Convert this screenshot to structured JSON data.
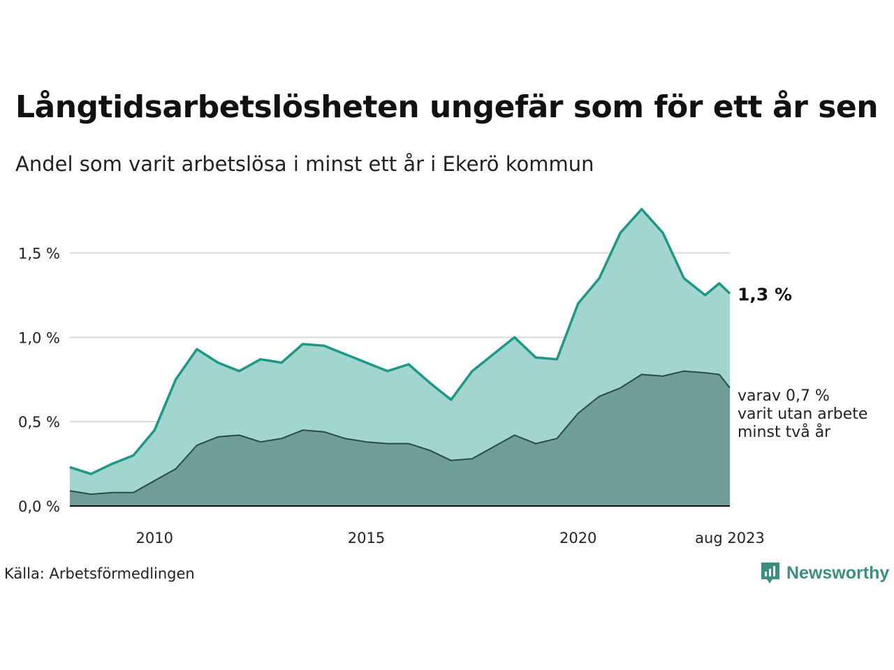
{
  "title": "Långtidsarbetslösheten ungefär som för ett år sen",
  "subtitle": "Andel som varit arbetslösa i minst ett år i Ekerö kommun",
  "source": "Källa: Arbetsförmedlingen",
  "brand": {
    "name": "Newsworthy",
    "icon": "newsworthy-logo-icon"
  },
  "colors": {
    "total_line": "#1a9a86",
    "total_fill": "#a3d5cf",
    "long_line": "#2a4a44",
    "long_fill": "#6e9e97",
    "grid": "#d9d9d9",
    "brand": "#3a8f80"
  },
  "chart_data": {
    "type": "area",
    "x_tick_labels": [
      "2010",
      "2015",
      "2020",
      "aug 2023"
    ],
    "y_tick_labels": [
      "0,0 %",
      "0,5 %",
      "1,0 %",
      "1,5 %"
    ],
    "ylim": [
      0,
      1.8
    ],
    "grid": true,
    "annotations": {
      "last_total": "1,3 %",
      "last_long_lines": [
        "varav 0,7 %",
        "varit utan arbete",
        "minst två år"
      ]
    },
    "series": [
      {
        "key": "total",
        "x": [
          "2008-01",
          "2008-07",
          "2009-01",
          "2009-07",
          "2010-01",
          "2010-07",
          "2011-01",
          "2011-07",
          "2012-01",
          "2012-07",
          "2013-01",
          "2013-07",
          "2014-01",
          "2014-07",
          "2015-01",
          "2015-07",
          "2016-01",
          "2016-07",
          "2017-01",
          "2017-07",
          "2018-01",
          "2018-07",
          "2019-01",
          "2019-07",
          "2020-01",
          "2020-07",
          "2021-01",
          "2021-07",
          "2022-01",
          "2022-07",
          "2023-01",
          "2023-05",
          "2023-08"
        ],
        "values": [
          0.23,
          0.19,
          0.25,
          0.3,
          0.45,
          0.75,
          0.93,
          0.85,
          0.8,
          0.87,
          0.85,
          0.96,
          0.95,
          0.9,
          0.85,
          0.8,
          0.84,
          0.73,
          0.63,
          0.8,
          0.9,
          1.0,
          0.88,
          0.87,
          1.2,
          1.35,
          1.62,
          1.76,
          1.62,
          1.35,
          1.25,
          1.32,
          1.26
        ]
      },
      {
        "key": "long",
        "x": [
          "2008-01",
          "2008-07",
          "2009-01",
          "2009-07",
          "2010-01",
          "2010-07",
          "2011-01",
          "2011-07",
          "2012-01",
          "2012-07",
          "2013-01",
          "2013-07",
          "2014-01",
          "2014-07",
          "2015-01",
          "2015-07",
          "2016-01",
          "2016-07",
          "2017-01",
          "2017-07",
          "2018-01",
          "2018-07",
          "2019-01",
          "2019-07",
          "2020-01",
          "2020-07",
          "2021-01",
          "2021-07",
          "2022-01",
          "2022-07",
          "2023-01",
          "2023-05",
          "2023-08"
        ],
        "values": [
          0.09,
          0.07,
          0.08,
          0.08,
          0.15,
          0.22,
          0.36,
          0.41,
          0.42,
          0.38,
          0.4,
          0.45,
          0.44,
          0.4,
          0.38,
          0.37,
          0.37,
          0.33,
          0.27,
          0.28,
          0.35,
          0.42,
          0.37,
          0.4,
          0.55,
          0.65,
          0.7,
          0.78,
          0.77,
          0.8,
          0.79,
          0.78,
          0.7
        ]
      }
    ]
  }
}
